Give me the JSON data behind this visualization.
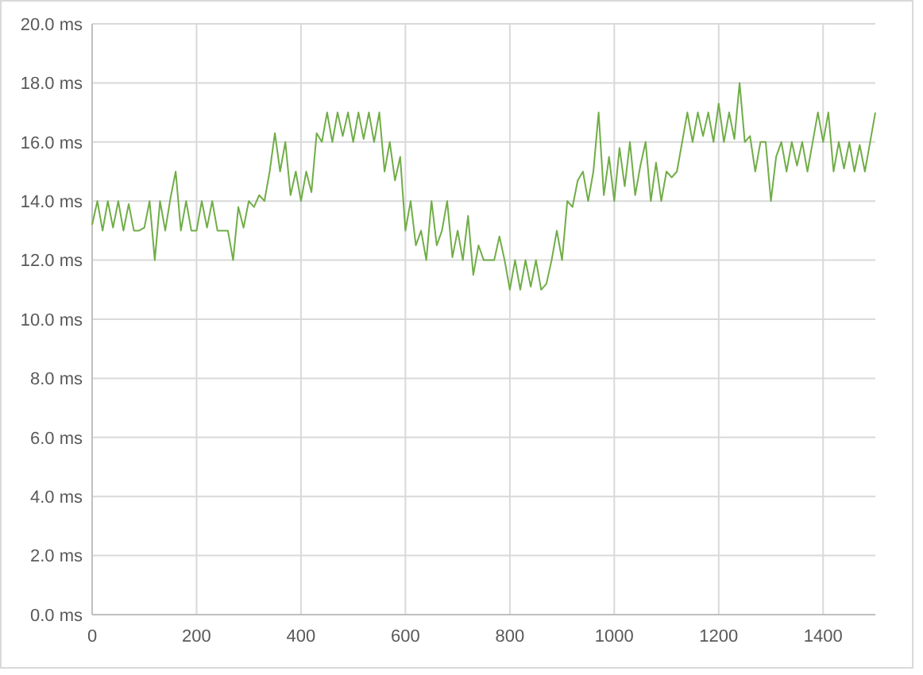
{
  "chart_data": {
    "type": "line",
    "x": [
      0,
      10,
      20,
      30,
      40,
      50,
      60,
      70,
      80,
      90,
      100,
      110,
      120,
      130,
      140,
      150,
      160,
      170,
      180,
      190,
      200,
      210,
      220,
      230,
      240,
      250,
      260,
      270,
      280,
      290,
      300,
      310,
      320,
      330,
      340,
      350,
      360,
      370,
      380,
      390,
      400,
      410,
      420,
      430,
      440,
      450,
      460,
      470,
      480,
      490,
      500,
      510,
      520,
      530,
      540,
      550,
      560,
      570,
      580,
      590,
      600,
      610,
      620,
      630,
      640,
      650,
      660,
      670,
      680,
      690,
      700,
      710,
      720,
      730,
      740,
      750,
      760,
      770,
      780,
      790,
      800,
      810,
      820,
      830,
      840,
      850,
      860,
      870,
      880,
      890,
      900,
      910,
      920,
      930,
      940,
      950,
      960,
      970,
      980,
      990,
      1000,
      1010,
      1020,
      1030,
      1040,
      1050,
      1060,
      1070,
      1080,
      1090,
      1100,
      1110,
      1120,
      1130,
      1140,
      1150,
      1160,
      1170,
      1180,
      1190,
      1200,
      1210,
      1220,
      1230,
      1240,
      1250,
      1260,
      1270,
      1280,
      1290,
      1300,
      1310,
      1320,
      1330,
      1340,
      1350,
      1360,
      1370,
      1380,
      1390,
      1400,
      1410,
      1420,
      1430,
      1440,
      1450,
      1460,
      1470,
      1480,
      1490,
      1500
    ],
    "series": [
      {
        "color": "#70ad47",
        "values": [
          13.2,
          14,
          13,
          14,
          13.1,
          14,
          13,
          13.9,
          13,
          13,
          13.1,
          14,
          12,
          14,
          13,
          14.1,
          15,
          13,
          14,
          13,
          13,
          14,
          13.1,
          14,
          13,
          13,
          13,
          12,
          13.8,
          13.1,
          14,
          13.8,
          14.2,
          14,
          15,
          16.3,
          15,
          16,
          14.2,
          15,
          14,
          15,
          14.3,
          16.3,
          16,
          17,
          16,
          17,
          16.2,
          17,
          16,
          17,
          16.1,
          17,
          16,
          17,
          15,
          16,
          14.7,
          15.5,
          13,
          14,
          12.5,
          13,
          12,
          14,
          12.5,
          13,
          14,
          12.1,
          13,
          12,
          13.5,
          11.5,
          12.5,
          12,
          12,
          12,
          12.8,
          12,
          11,
          12,
          11,
          12,
          11.1,
          12,
          11,
          11.2,
          12,
          13,
          12,
          14,
          13.8,
          14.7,
          15,
          14,
          15,
          17,
          14.2,
          15.5,
          14,
          15.8,
          14.5,
          16,
          14.2,
          15.2,
          16,
          14,
          15.3,
          14,
          15,
          14.8,
          15,
          16,
          17,
          16,
          17,
          16.2,
          17,
          16,
          17.3,
          16,
          17,
          16.1,
          18,
          16,
          16.2,
          15,
          16,
          16,
          14,
          15.5,
          16,
          15,
          16,
          15.2,
          16,
          15,
          16,
          17,
          16,
          17,
          15,
          16,
          15.1,
          16,
          15,
          15.9,
          15,
          16,
          17
        ]
      }
    ],
    "xlim": [
      0,
      1500
    ],
    "xticks": [
      0,
      200,
      400,
      600,
      800,
      1000,
      1200,
      1400
    ],
    "ylim": [
      0,
      20
    ],
    "yticks": [
      {
        "value": 0,
        "label": "0.0 ms"
      },
      {
        "value": 2,
        "label": "2.0 ms"
      },
      {
        "value": 4,
        "label": "4.0 ms"
      },
      {
        "value": 6,
        "label": "6.0 ms"
      },
      {
        "value": 8,
        "label": "8.0 ms"
      },
      {
        "value": 10,
        "label": "10.0 ms"
      },
      {
        "value": 12,
        "label": "12.0 ms"
      },
      {
        "value": 14,
        "label": "14.0 ms"
      },
      {
        "value": 16,
        "label": "16.0 ms"
      },
      {
        "value": 18,
        "label": "18.0 ms"
      },
      {
        "value": 20,
        "label": "20.0 ms"
      }
    ],
    "grid": true,
    "marker": "none",
    "line_style": "solid"
  }
}
